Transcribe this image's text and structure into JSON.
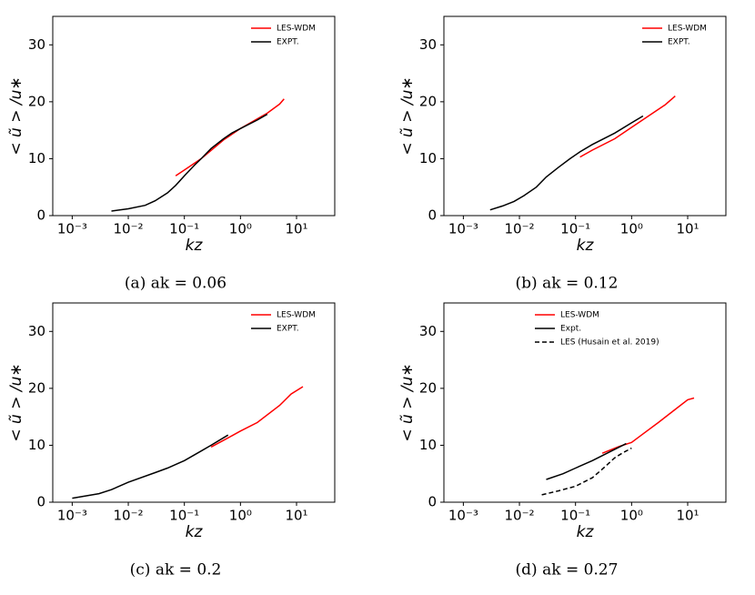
{
  "chart_data": [
    {
      "type": "line",
      "xlabel": "kz",
      "ylabel": "< ũ > /u∗",
      "caption": "(a) ak = 0.06",
      "xscale": "log",
      "xlim": [
        0.00045,
        48
      ],
      "ylim": [
        0,
        35
      ],
      "xticks": [
        {
          "value": 0.001,
          "label": "10⁻³"
        },
        {
          "value": 0.01,
          "label": "10⁻²"
        },
        {
          "value": 0.1,
          "label": "10⁻¹"
        },
        {
          "value": 1,
          "label": "10⁰"
        },
        {
          "value": 10,
          "label": "10¹"
        }
      ],
      "yticks": [
        0,
        10,
        20,
        30
      ],
      "legend": "upper right",
      "series": [
        {
          "name": "LES-WDM",
          "color": "#ff0000",
          "style": "solid",
          "x": [
            0.07,
            0.1,
            0.2,
            0.5,
            1,
            2,
            3,
            5,
            6
          ],
          "values": [
            7,
            8,
            10,
            13.3,
            15.3,
            17,
            18,
            19.6,
            20.5
          ]
        },
        {
          "name": "EXPT.",
          "color": "#000000",
          "style": "solid",
          "x": [
            0.005,
            0.01,
            0.02,
            0.03,
            0.05,
            0.07,
            0.1,
            0.15,
            0.2,
            0.3,
            0.5,
            0.7,
            1,
            2,
            3
          ],
          "values": [
            0.8,
            1.2,
            1.8,
            2.6,
            4,
            5.3,
            7,
            8.8,
            10,
            11.8,
            13.5,
            14.5,
            15.3,
            16.8,
            17.8
          ]
        }
      ]
    },
    {
      "type": "line",
      "xlabel": "kz",
      "ylabel": "< ũ > /u∗",
      "caption": "(b) ak = 0.12",
      "xscale": "log",
      "xlim": [
        0.00045,
        48
      ],
      "ylim": [
        0,
        35
      ],
      "xticks": [
        {
          "value": 0.001,
          "label": "10⁻³"
        },
        {
          "value": 0.01,
          "label": "10⁻²"
        },
        {
          "value": 0.1,
          "label": "10⁻¹"
        },
        {
          "value": 1,
          "label": "10⁰"
        },
        {
          "value": 10,
          "label": "10¹"
        }
      ],
      "yticks": [
        0,
        10,
        20,
        30
      ],
      "legend": "upper right",
      "series": [
        {
          "name": "LES-WDM",
          "color": "#ff0000",
          "style": "solid",
          "x": [
            0.12,
            0.2,
            0.5,
            1,
            2,
            4,
            6
          ],
          "values": [
            10.3,
            11.5,
            13.5,
            15.5,
            17.5,
            19.5,
            21
          ]
        },
        {
          "name": "EXPT.",
          "color": "#000000",
          "style": "solid",
          "x": [
            0.003,
            0.005,
            0.008,
            0.012,
            0.02,
            0.03,
            0.05,
            0.08,
            0.12,
            0.2,
            0.5,
            1,
            1.6
          ],
          "values": [
            1,
            1.7,
            2.5,
            3.5,
            5,
            6.8,
            8.5,
            10,
            11.2,
            12.5,
            14.5,
            16.3,
            17.5
          ]
        }
      ]
    },
    {
      "type": "line",
      "xlabel": "kz",
      "ylabel": "< ũ > /u∗",
      "caption": "(c) ak = 0.2",
      "xscale": "log",
      "xlim": [
        0.00045,
        48
      ],
      "ylim": [
        0,
        35
      ],
      "xticks": [
        {
          "value": 0.001,
          "label": "10⁻³"
        },
        {
          "value": 0.01,
          "label": "10⁻²"
        },
        {
          "value": 0.1,
          "label": "10⁻¹"
        },
        {
          "value": 1,
          "label": "10⁰"
        },
        {
          "value": 10,
          "label": "10¹"
        }
      ],
      "yticks": [
        0,
        10,
        20,
        30
      ],
      "legend": "upper right",
      "series": [
        {
          "name": "LES-WDM",
          "color": "#ff0000",
          "style": "solid",
          "x": [
            0.3,
            0.6,
            1,
            2,
            5,
            8,
            13
          ],
          "values": [
            9.7,
            11.3,
            12.5,
            14,
            17,
            19,
            20.3
          ]
        },
        {
          "name": "EXPT.",
          "color": "#000000",
          "style": "solid",
          "x": [
            0.001,
            0.003,
            0.005,
            0.01,
            0.03,
            0.05,
            0.1,
            0.2,
            0.3,
            0.6
          ],
          "values": [
            0.7,
            1.5,
            2.2,
            3.5,
            5.2,
            6,
            7.3,
            9,
            10,
            11.8
          ]
        }
      ]
    },
    {
      "type": "line",
      "xlabel": "kz",
      "ylabel": "< ũ > /u∗",
      "caption": "(d) ak = 0.27",
      "xscale": "log",
      "xlim": [
        0.00045,
        48
      ],
      "ylim": [
        0,
        35
      ],
      "xticks": [
        {
          "value": 0.001,
          "label": "10⁻³"
        },
        {
          "value": 0.01,
          "label": "10⁻²"
        },
        {
          "value": 0.1,
          "label": "10⁻¹"
        },
        {
          "value": 1,
          "label": "10⁰"
        },
        {
          "value": 10,
          "label": "10¹"
        }
      ],
      "yticks": [
        0,
        10,
        20,
        30
      ],
      "legend": "upper center",
      "series": [
        {
          "name": "LES-WDM",
          "color": "#ff0000",
          "style": "solid",
          "x": [
            0.3,
            0.6,
            1,
            1.5,
            3,
            6,
            10,
            13
          ],
          "values": [
            8.6,
            9.8,
            10.5,
            11.8,
            14,
            16.3,
            18,
            18.3
          ]
        },
        {
          "name": "Expt.",
          "color": "#000000",
          "style": "solid",
          "x": [
            0.03,
            0.06,
            0.1,
            0.2,
            0.4,
            0.8
          ],
          "values": [
            4,
            5,
            6,
            7.3,
            8.8,
            10.3
          ]
        },
        {
          "name": "LES (Husain et al. 2019)",
          "color": "#000000",
          "style": "dashed",
          "x": [
            0.025,
            0.05,
            0.1,
            0.2,
            0.3,
            0.5,
            0.7,
            1
          ],
          "values": [
            1.3,
            2,
            2.8,
            4.3,
            5.8,
            7.8,
            8.7,
            9.5
          ]
        }
      ]
    }
  ]
}
